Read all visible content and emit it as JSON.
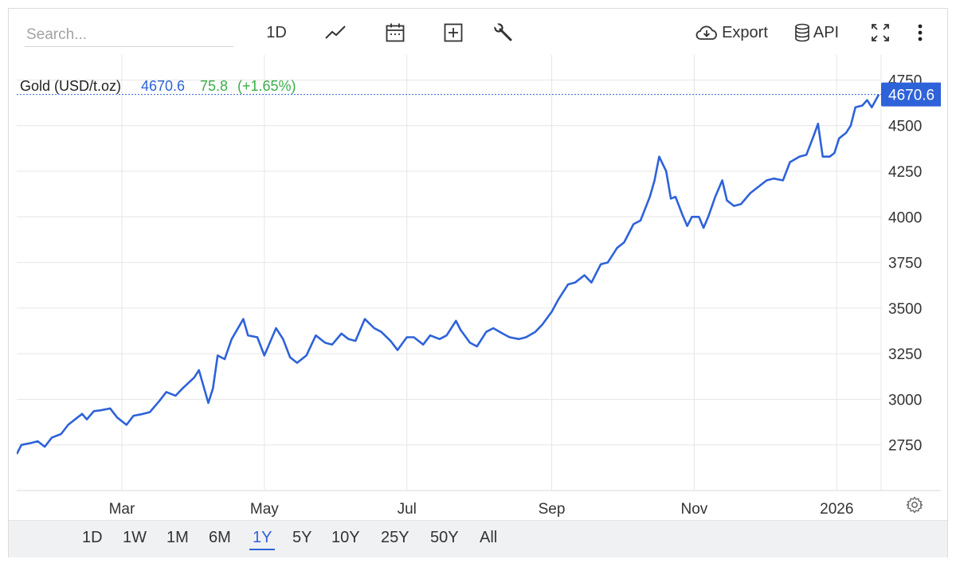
{
  "toolbar": {
    "search_placeholder": "Search...",
    "interval_label": "1D",
    "export_label": "Export",
    "api_label": "API",
    "icons": [
      "line-chart-icon",
      "calendar-icon",
      "add-box-icon",
      "wrench-icon",
      "cloud-download-icon",
      "database-icon",
      "fullscreen-icon",
      "more-vertical-icon"
    ]
  },
  "header": {
    "instrument": "Gold (USD/t.oz)",
    "price": "4670.6",
    "change": "75.8",
    "change_pct": "(+1.65%)"
  },
  "colors": {
    "line": "#2e62d9",
    "up": "#3bae49",
    "grid": "#e6e6e6",
    "last_price_bg": "#2e62d9"
  },
  "chart_data": {
    "type": "line",
    "title": "Gold (USD/t.oz)",
    "ylim": [
      2500,
      4800
    ],
    "yticks": [
      2750,
      3000,
      3250,
      3500,
      3750,
      4000,
      4250,
      4500,
      4750
    ],
    "xlim": [
      "2025-01-15",
      "2026-01-20"
    ],
    "xticks": [
      {
        "date": "2025-03-01",
        "label": "Mar"
      },
      {
        "date": "2025-05-01",
        "label": "May"
      },
      {
        "date": "2025-07-01",
        "label": "Jul"
      },
      {
        "date": "2025-09-01",
        "label": "Sep"
      },
      {
        "date": "2025-11-01",
        "label": "Nov"
      },
      {
        "date": "2026-01-01",
        "label": "2026"
      }
    ],
    "last_value_label": "4670.6",
    "grid": true,
    "series": [
      {
        "points": [
          [
            "2025-01-15",
            2700
          ],
          [
            "2025-01-17",
            2750
          ],
          [
            "2025-01-21",
            2760
          ],
          [
            "2025-01-24",
            2770
          ],
          [
            "2025-01-27",
            2740
          ],
          [
            "2025-01-30",
            2790
          ],
          [
            "2025-02-03",
            2810
          ],
          [
            "2025-02-06",
            2860
          ],
          [
            "2025-02-10",
            2900
          ],
          [
            "2025-02-12",
            2920
          ],
          [
            "2025-02-14",
            2890
          ],
          [
            "2025-02-17",
            2935
          ],
          [
            "2025-02-20",
            2940
          ],
          [
            "2025-02-24",
            2950
          ],
          [
            "2025-02-27",
            2900
          ],
          [
            "2025-03-03",
            2860
          ],
          [
            "2025-03-06",
            2910
          ],
          [
            "2025-03-10",
            2920
          ],
          [
            "2025-03-13",
            2930
          ],
          [
            "2025-03-17",
            2990
          ],
          [
            "2025-03-20",
            3040
          ],
          [
            "2025-03-24",
            3020
          ],
          [
            "2025-03-27",
            3060
          ],
          [
            "2025-04-01",
            3120
          ],
          [
            "2025-04-03",
            3160
          ],
          [
            "2025-04-07",
            2980
          ],
          [
            "2025-04-09",
            3060
          ],
          [
            "2025-04-11",
            3240
          ],
          [
            "2025-04-14",
            3220
          ],
          [
            "2025-04-17",
            3330
          ],
          [
            "2025-04-22",
            3440
          ],
          [
            "2025-04-24",
            3350
          ],
          [
            "2025-04-28",
            3340
          ],
          [
            "2025-05-01",
            3240
          ],
          [
            "2025-05-06",
            3390
          ],
          [
            "2025-05-09",
            3330
          ],
          [
            "2025-05-12",
            3230
          ],
          [
            "2025-05-15",
            3200
          ],
          [
            "2025-05-19",
            3240
          ],
          [
            "2025-05-23",
            3350
          ],
          [
            "2025-05-27",
            3310
          ],
          [
            "2025-05-30",
            3300
          ],
          [
            "2025-06-03",
            3360
          ],
          [
            "2025-06-06",
            3330
          ],
          [
            "2025-06-09",
            3320
          ],
          [
            "2025-06-13",
            3440
          ],
          [
            "2025-06-17",
            3390
          ],
          [
            "2025-06-20",
            3370
          ],
          [
            "2025-06-24",
            3320
          ],
          [
            "2025-06-27",
            3270
          ],
          [
            "2025-07-01",
            3340
          ],
          [
            "2025-07-04",
            3340
          ],
          [
            "2025-07-08",
            3300
          ],
          [
            "2025-07-11",
            3350
          ],
          [
            "2025-07-15",
            3330
          ],
          [
            "2025-07-18",
            3350
          ],
          [
            "2025-07-22",
            3430
          ],
          [
            "2025-07-24",
            3380
          ],
          [
            "2025-07-28",
            3310
          ],
          [
            "2025-07-31",
            3290
          ],
          [
            "2025-08-04",
            3370
          ],
          [
            "2025-08-07",
            3390
          ],
          [
            "2025-08-11",
            3360
          ],
          [
            "2025-08-14",
            3340
          ],
          [
            "2025-08-18",
            3330
          ],
          [
            "2025-08-21",
            3340
          ],
          [
            "2025-08-25",
            3370
          ],
          [
            "2025-08-28",
            3410
          ],
          [
            "2025-09-01",
            3480
          ],
          [
            "2025-09-04",
            3550
          ],
          [
            "2025-09-08",
            3630
          ],
          [
            "2025-09-11",
            3640
          ],
          [
            "2025-09-15",
            3680
          ],
          [
            "2025-09-18",
            3640
          ],
          [
            "2025-09-22",
            3740
          ],
          [
            "2025-09-25",
            3750
          ],
          [
            "2025-09-29",
            3830
          ],
          [
            "2025-10-02",
            3860
          ],
          [
            "2025-10-06",
            3960
          ],
          [
            "2025-10-09",
            3980
          ],
          [
            "2025-10-13",
            4110
          ],
          [
            "2025-10-15",
            4200
          ],
          [
            "2025-10-17",
            4330
          ],
          [
            "2025-10-20",
            4250
          ],
          [
            "2025-10-22",
            4100
          ],
          [
            "2025-10-24",
            4110
          ],
          [
            "2025-10-27",
            4010
          ],
          [
            "2025-10-29",
            3950
          ],
          [
            "2025-10-31",
            4000
          ],
          [
            "2025-11-03",
            4000
          ],
          [
            "2025-11-05",
            3940
          ],
          [
            "2025-11-07",
            4000
          ],
          [
            "2025-11-10",
            4110
          ],
          [
            "2025-11-13",
            4200
          ],
          [
            "2025-11-15",
            4090
          ],
          [
            "2025-11-18",
            4060
          ],
          [
            "2025-11-21",
            4070
          ],
          [
            "2025-11-25",
            4130
          ],
          [
            "2025-11-28",
            4160
          ],
          [
            "2025-12-02",
            4200
          ],
          [
            "2025-12-05",
            4210
          ],
          [
            "2025-12-09",
            4200
          ],
          [
            "2025-12-12",
            4300
          ],
          [
            "2025-12-16",
            4330
          ],
          [
            "2025-12-19",
            4340
          ],
          [
            "2025-12-22",
            4440
          ],
          [
            "2025-12-24",
            4510
          ],
          [
            "2025-12-26",
            4330
          ],
          [
            "2025-12-29",
            4330
          ],
          [
            "2025-12-31",
            4350
          ],
          [
            "2026-01-02",
            4430
          ],
          [
            "2026-01-05",
            4460
          ],
          [
            "2026-01-07",
            4500
          ],
          [
            "2026-01-09",
            4600
          ],
          [
            "2026-01-12",
            4610
          ],
          [
            "2026-01-14",
            4640
          ],
          [
            "2026-01-16",
            4600
          ],
          [
            "2026-01-19",
            4670.6
          ]
        ]
      }
    ]
  },
  "ranges": {
    "items": [
      "1D",
      "1W",
      "1M",
      "6M",
      "1Y",
      "5Y",
      "10Y",
      "25Y",
      "50Y",
      "All"
    ],
    "active": "1Y"
  }
}
